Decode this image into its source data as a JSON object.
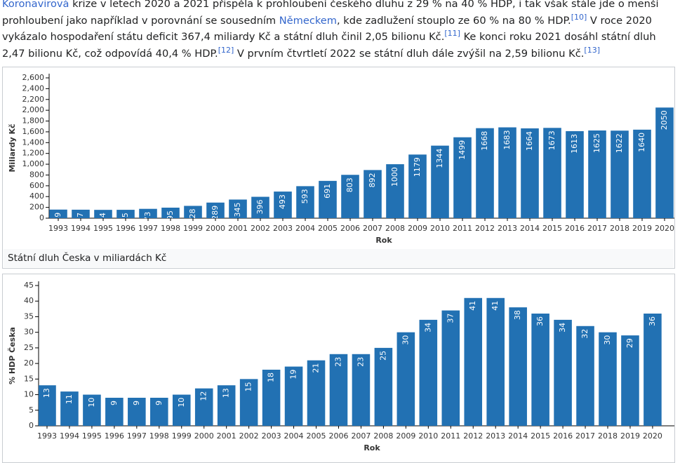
{
  "paragraph": {
    "segments": [
      {
        "text": "Koronavirová"
      },
      {
        "text": " krize v letech 2020 a 2021 přispěla k prohloubení českého dluhu z 29 % na 40 % HDP, i tak však stále jde o menší prohloubení jako například v porovnání se sousedním "
      },
      {
        "text": "Německem"
      },
      {
        "text": ", kde zadlužení stouplo ze 60 % na 80 % HDP."
      },
      {
        "text": "[10]"
      },
      {
        "text": " V roce 2020 vykázalo hospodaření státu deficit 367,4 miliardy Kč a státní dluh činil 2,05 bilionu Kč."
      },
      {
        "text": "[11]"
      },
      {
        "text": " Ke konci roku 2021 dosáhl státní dluh 2,47 bilionu Kč, což odpovídá 40,4 % HDP."
      },
      {
        "text": "[12]"
      },
      {
        "text": " V prvním čtvrtletí 2022 se státní dluh dále zvýšil na 2,59 bilionu Kč."
      },
      {
        "text": "[13]"
      }
    ]
  },
  "chart_data": [
    {
      "type": "bar",
      "caption": "Státní dluh Česka v miliardách Kč",
      "y_label": "Miliardy Kč",
      "x_label": "Rok",
      "color": "#2271b3",
      "categories": [
        "1993",
        "1994",
        "1995",
        "1996",
        "1997",
        "1998",
        "1999",
        "2000",
        "2001",
        "2002",
        "2003",
        "2004",
        "2005",
        "2006",
        "2007",
        "2008",
        "2009",
        "2010",
        "2011",
        "2012",
        "2013",
        "2014",
        "2015",
        "2016",
        "2017",
        "2018",
        "2019",
        "2020"
      ],
      "values": [
        159,
        157,
        154,
        155,
        173,
        195,
        228,
        289,
        345,
        396,
        493,
        593,
        691,
        803,
        892,
        1000,
        1179,
        1344,
        1499,
        1668,
        1683,
        1664,
        1673,
        1613,
        1625,
        1622,
        1640,
        2050
      ],
      "ylim": [
        0,
        2600
      ],
      "yticks": [
        0,
        200,
        400,
        600,
        800,
        {
          "value": 1000,
          "label": "1,000"
        },
        {
          "value": 1200,
          "label": "1,200"
        },
        {
          "value": 1400,
          "label": "1,400"
        },
        {
          "value": 1600,
          "label": "1,600"
        },
        {
          "value": 1800,
          "label": "1,800"
        },
        {
          "value": 2000,
          "label": "2,000"
        },
        {
          "value": 2200,
          "label": "2,200"
        },
        {
          "value": 2400,
          "label": "2,400"
        },
        {
          "value": 2600,
          "label": "2,600"
        }
      ]
    },
    {
      "type": "bar",
      "y_label": "% HDP Česka",
      "x_label": "Rok",
      "color": "#2271b3",
      "categories": [
        "1993",
        "1994",
        "1995",
        "1996",
        "1997",
        "1998",
        "1999",
        "2000",
        "2001",
        "2002",
        "2003",
        "2004",
        "2005",
        "2006",
        "2007",
        "2008",
        "2009",
        "2010",
        "2011",
        "2012",
        "2013",
        "2014",
        "2015",
        "2016",
        "2017",
        "2018",
        "2019",
        "2020"
      ],
      "values": [
        13,
        11,
        10,
        9,
        9,
        9,
        10,
        12,
        13,
        15,
        18,
        19,
        21,
        23,
        23,
        25,
        30,
        34,
        37,
        41,
        41,
        38,
        36,
        34,
        32,
        30,
        29,
        36
      ],
      "ylim": [
        0,
        45
      ],
      "yticks": [
        0,
        5,
        10,
        15,
        20,
        25,
        30,
        35,
        40,
        45
      ]
    }
  ]
}
